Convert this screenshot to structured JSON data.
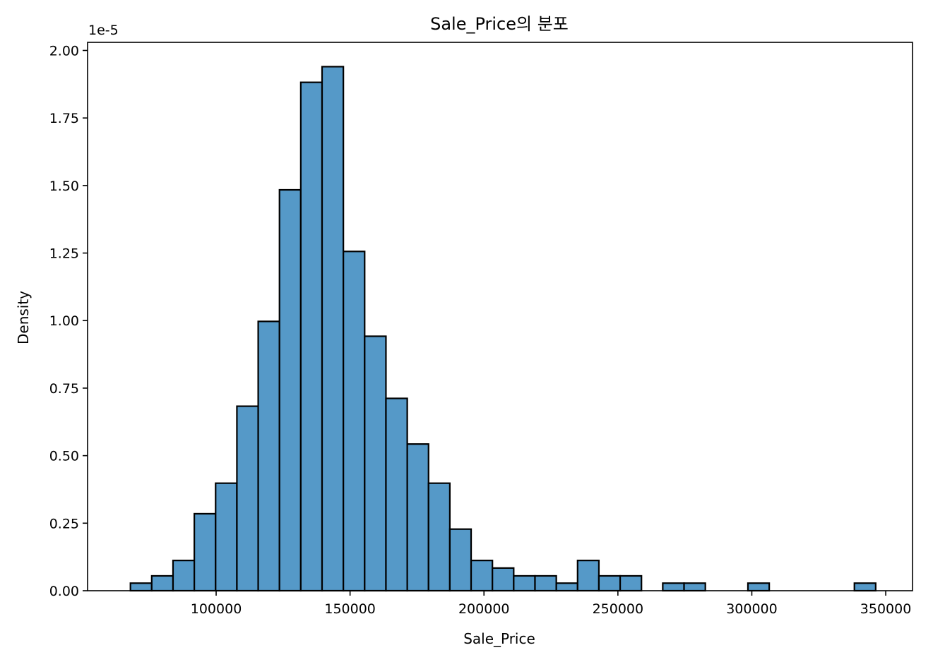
{
  "chart_data": {
    "type": "bar",
    "title": "Sale_Price의 분포",
    "xlabel": "Sale_Price",
    "ylabel": "Density",
    "offset_label": "1e-5",
    "xlim": [
      52000,
      360000
    ],
    "ylim": [
      0,
      2.03
    ],
    "xticks": [
      100000,
      150000,
      200000,
      250000,
      300000,
      350000
    ],
    "xtick_labels": [
      "100000",
      "150000",
      "200000",
      "250000",
      "300000",
      "350000"
    ],
    "yticks": [
      0,
      0.25,
      0.5,
      0.75,
      1.0,
      1.25,
      1.5,
      1.75,
      2.0
    ],
    "ytick_labels": [
      "0.00",
      "0.25",
      "0.50",
      "0.75",
      "1.00",
      "1.25",
      "1.50",
      "1.75",
      "2.00"
    ],
    "grid": false,
    "bar_color": "#5599c8",
    "bin_start": 68000,
    "bin_width": 7950,
    "values": [
      0.028,
      0.055,
      0.112,
      0.285,
      0.398,
      0.683,
      0.997,
      1.484,
      1.882,
      1.94,
      1.256,
      0.942,
      0.712,
      0.543,
      0.398,
      0.228,
      0.112,
      0.084,
      0.055,
      0.055,
      0.028,
      0.112,
      0.055,
      0.055,
      0,
      0.028,
      0.028,
      0,
      0,
      0.028,
      0,
      0,
      0,
      0,
      0.028
    ]
  }
}
